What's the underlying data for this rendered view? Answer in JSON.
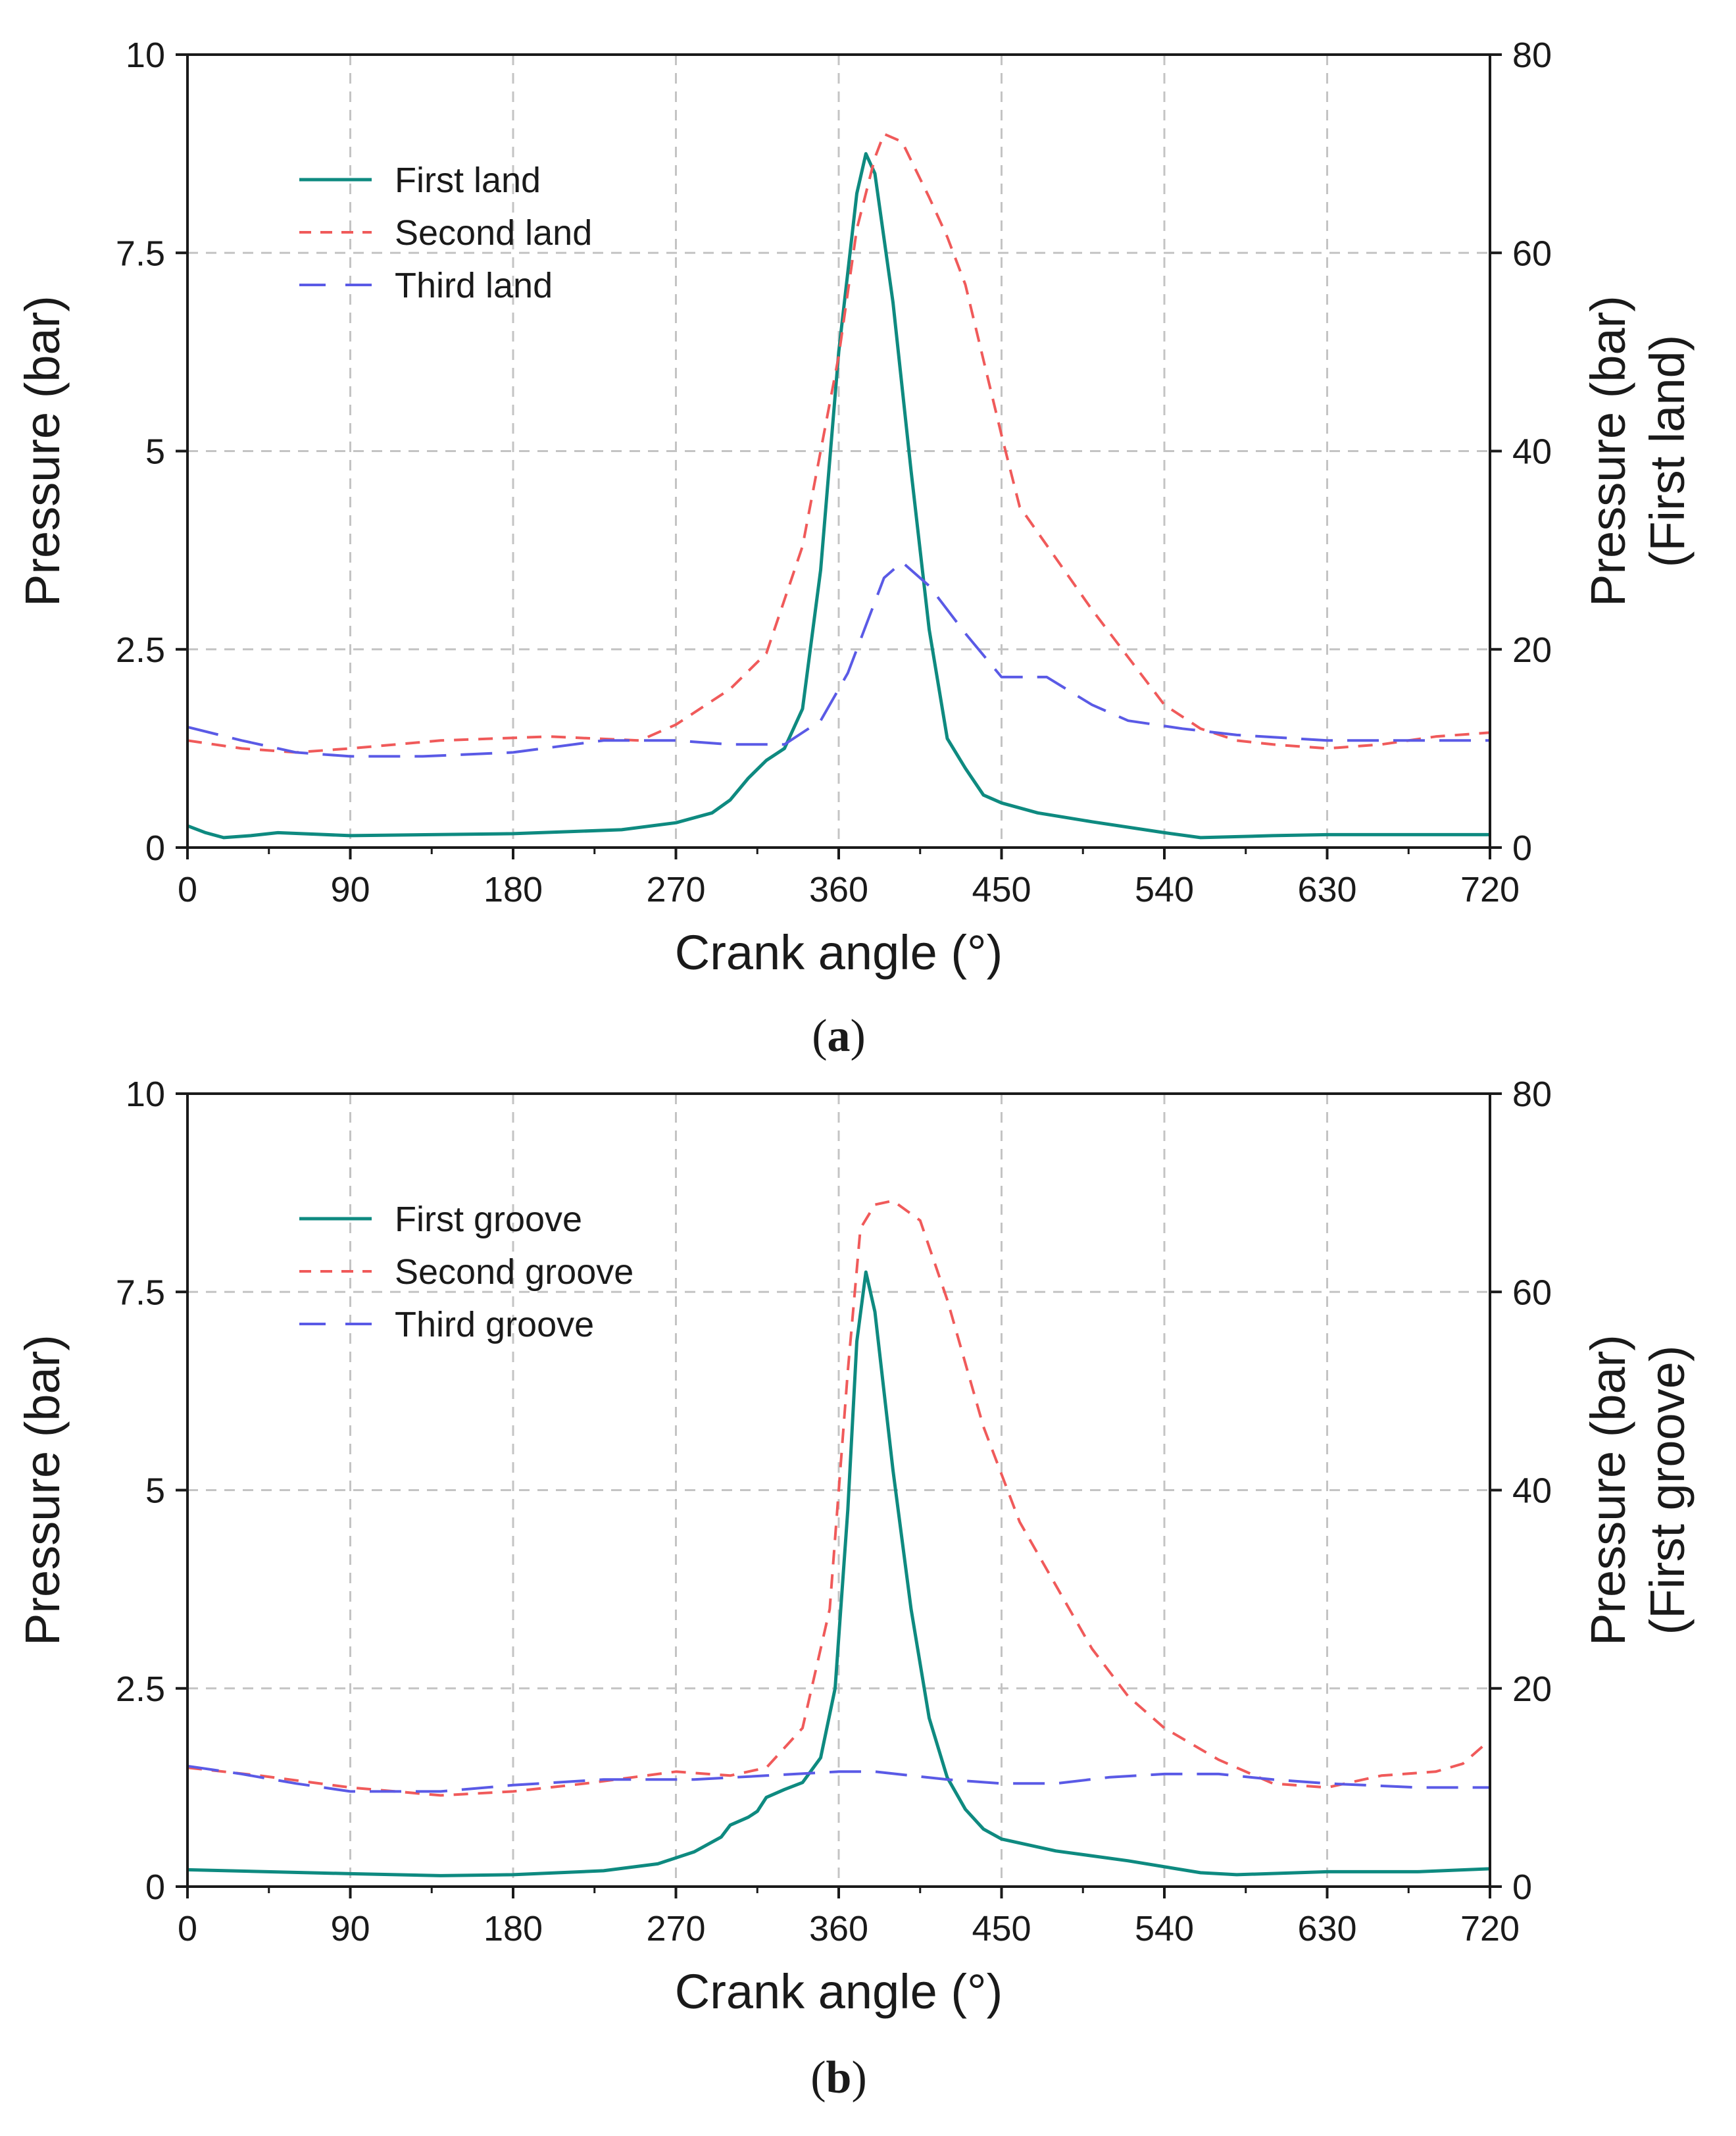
{
  "chart_data": [
    {
      "type": "line",
      "panel_label": "a",
      "xlabel": "Crank angle (°)",
      "ylabel": "Pressure (bar)",
      "y2label_line1": "Pressure (bar)",
      "y2label_line2": "(First land)",
      "xlim": [
        0,
        720
      ],
      "ylim": [
        0,
        10
      ],
      "y2lim": [
        0,
        80
      ],
      "xticks": [
        "0",
        "90",
        "180",
        "270",
        "360",
        "450",
        "540",
        "630",
        "720"
      ],
      "yticks": [
        "0",
        "2.5",
        "5",
        "7.5",
        "10"
      ],
      "y2ticks": [
        "0",
        "20",
        "40",
        "60",
        "80"
      ],
      "grid": true,
      "legend_position": "top-left",
      "series": [
        {
          "name": "First land",
          "axis": "right",
          "color": "#0e8a80",
          "style": "solid",
          "points": [
            [
              0,
              2.2
            ],
            [
              10,
              1.5
            ],
            [
              20,
              1.0
            ],
            [
              35,
              1.2
            ],
            [
              50,
              1.5
            ],
            [
              90,
              1.2
            ],
            [
              180,
              1.4
            ],
            [
              240,
              1.8
            ],
            [
              270,
              2.5
            ],
            [
              290,
              3.5
            ],
            [
              300,
              4.8
            ],
            [
              310,
              7.0
            ],
            [
              320,
              8.8
            ],
            [
              330,
              10.0
            ],
            [
              340,
              14.0
            ],
            [
              350,
              28.0
            ],
            [
              360,
              50.0
            ],
            [
              370,
              66.0
            ],
            [
              375,
              70.0
            ],
            [
              380,
              68.0
            ],
            [
              390,
              55.0
            ],
            [
              400,
              38.0
            ],
            [
              410,
              22.0
            ],
            [
              420,
              11.0
            ],
            [
              430,
              8.0
            ],
            [
              440,
              5.3
            ],
            [
              450,
              4.5
            ],
            [
              470,
              3.5
            ],
            [
              500,
              2.6
            ],
            [
              540,
              1.5
            ],
            [
              560,
              1.0
            ],
            [
              600,
              1.2
            ],
            [
              630,
              1.3
            ],
            [
              720,
              1.3
            ]
          ]
        },
        {
          "name": "Second land",
          "axis": "left",
          "color": "#f05a5a",
          "style": "dash",
          "points": [
            [
              0,
              1.35
            ],
            [
              30,
              1.25
            ],
            [
              60,
              1.2
            ],
            [
              90,
              1.25
            ],
            [
              140,
              1.35
            ],
            [
              200,
              1.4
            ],
            [
              250,
              1.35
            ],
            [
              270,
              1.55
            ],
            [
              300,
              2.0
            ],
            [
              320,
              2.45
            ],
            [
              340,
              3.8
            ],
            [
              360,
              6.2
            ],
            [
              370,
              7.8
            ],
            [
              380,
              8.7
            ],
            [
              385,
              9.0
            ],
            [
              395,
              8.9
            ],
            [
              410,
              8.2
            ],
            [
              420,
              7.7
            ],
            [
              430,
              7.1
            ],
            [
              450,
              5.2
            ],
            [
              460,
              4.3
            ],
            [
              480,
              3.65
            ],
            [
              500,
              3.0
            ],
            [
              520,
              2.4
            ],
            [
              540,
              1.8
            ],
            [
              560,
              1.5
            ],
            [
              580,
              1.35
            ],
            [
              600,
              1.3
            ],
            [
              630,
              1.25
            ],
            [
              660,
              1.3
            ],
            [
              690,
              1.4
            ],
            [
              720,
              1.45
            ]
          ]
        },
        {
          "name": "Third land",
          "axis": "left",
          "color": "#5a5ae6",
          "style": "longdash",
          "points": [
            [
              0,
              1.52
            ],
            [
              30,
              1.35
            ],
            [
              60,
              1.2
            ],
            [
              90,
              1.15
            ],
            [
              130,
              1.15
            ],
            [
              180,
              1.2
            ],
            [
              230,
              1.35
            ],
            [
              270,
              1.35
            ],
            [
              300,
              1.3
            ],
            [
              330,
              1.3
            ],
            [
              350,
              1.6
            ],
            [
              365,
              2.2
            ],
            [
              375,
              2.8
            ],
            [
              385,
              3.4
            ],
            [
              395,
              3.6
            ],
            [
              410,
              3.3
            ],
            [
              430,
              2.7
            ],
            [
              450,
              2.15
            ],
            [
              475,
              2.15
            ],
            [
              500,
              1.8
            ],
            [
              520,
              1.6
            ],
            [
              550,
              1.5
            ],
            [
              580,
              1.42
            ],
            [
              630,
              1.35
            ],
            [
              720,
              1.35
            ]
          ]
        }
      ]
    },
    {
      "type": "line",
      "panel_label": "b",
      "xlabel": "Crank angle (°)",
      "ylabel": "Pressure (bar)",
      "y2label_line1": "Pressure (bar)",
      "y2label_line2": "(First groove)",
      "xlim": [
        0,
        720
      ],
      "ylim": [
        0,
        10
      ],
      "y2lim": [
        0,
        80
      ],
      "xticks": [
        "0",
        "90",
        "180",
        "270",
        "360",
        "450",
        "540",
        "630",
        "720"
      ],
      "yticks": [
        "0",
        "2.5",
        "5",
        "7.5",
        "10"
      ],
      "y2ticks": [
        "0",
        "20",
        "40",
        "60",
        "80"
      ],
      "grid": true,
      "legend_position": "top-left",
      "series": [
        {
          "name": "First groove",
          "axis": "right",
          "color": "#0e8a80",
          "style": "solid",
          "points": [
            [
              0,
              1.7
            ],
            [
              90,
              1.3
            ],
            [
              140,
              1.1
            ],
            [
              180,
              1.2
            ],
            [
              230,
              1.6
            ],
            [
              260,
              2.3
            ],
            [
              280,
              3.5
            ],
            [
              295,
              5.0
            ],
            [
              300,
              6.2
            ],
            [
              310,
              7.0
            ],
            [
              315,
              7.6
            ],
            [
              320,
              9.0
            ],
            [
              330,
              9.8
            ],
            [
              340,
              10.5
            ],
            [
              350,
              13.0
            ],
            [
              358,
              20.0
            ],
            [
              365,
              38.0
            ],
            [
              370,
              55.0
            ],
            [
              375,
              62.0
            ],
            [
              380,
              58.0
            ],
            [
              390,
              42.0
            ],
            [
              400,
              28.0
            ],
            [
              410,
              17.0
            ],
            [
              420,
              11.0
            ],
            [
              430,
              7.8
            ],
            [
              440,
              5.8
            ],
            [
              450,
              4.8
            ],
            [
              480,
              3.6
            ],
            [
              520,
              2.6
            ],
            [
              560,
              1.4
            ],
            [
              580,
              1.2
            ],
            [
              630,
              1.5
            ],
            [
              680,
              1.5
            ],
            [
              720,
              1.8
            ]
          ]
        },
        {
          "name": "Second groove",
          "axis": "left",
          "color": "#f05a5a",
          "style": "dash",
          "points": [
            [
              0,
              1.5
            ],
            [
              40,
              1.4
            ],
            [
              90,
              1.25
            ],
            [
              140,
              1.15
            ],
            [
              180,
              1.2
            ],
            [
              220,
              1.3
            ],
            [
              270,
              1.45
            ],
            [
              300,
              1.4
            ],
            [
              320,
              1.5
            ],
            [
              340,
              2.0
            ],
            [
              355,
              3.5
            ],
            [
              365,
              6.5
            ],
            [
              372,
              8.3
            ],
            [
              380,
              8.6
            ],
            [
              390,
              8.65
            ],
            [
              405,
              8.4
            ],
            [
              420,
              7.4
            ],
            [
              440,
              5.8
            ],
            [
              460,
              4.6
            ],
            [
              480,
              3.8
            ],
            [
              500,
              3.0
            ],
            [
              520,
              2.4
            ],
            [
              540,
              2.0
            ],
            [
              570,
              1.6
            ],
            [
              600,
              1.3
            ],
            [
              630,
              1.25
            ],
            [
              660,
              1.4
            ],
            [
              690,
              1.45
            ],
            [
              705,
              1.55
            ],
            [
              720,
              1.85
            ]
          ]
        },
        {
          "name": "Third groove",
          "axis": "left",
          "color": "#5a5ae6",
          "style": "longdash",
          "points": [
            [
              0,
              1.52
            ],
            [
              30,
              1.42
            ],
            [
              60,
              1.3
            ],
            [
              90,
              1.2
            ],
            [
              140,
              1.2
            ],
            [
              180,
              1.28
            ],
            [
              230,
              1.35
            ],
            [
              280,
              1.35
            ],
            [
              320,
              1.4
            ],
            [
              360,
              1.45
            ],
            [
              380,
              1.45
            ],
            [
              420,
              1.35
            ],
            [
              450,
              1.3
            ],
            [
              480,
              1.3
            ],
            [
              510,
              1.38
            ],
            [
              540,
              1.42
            ],
            [
              570,
              1.42
            ],
            [
              600,
              1.35
            ],
            [
              630,
              1.3
            ],
            [
              680,
              1.25
            ],
            [
              720,
              1.25
            ]
          ]
        }
      ]
    }
  ]
}
